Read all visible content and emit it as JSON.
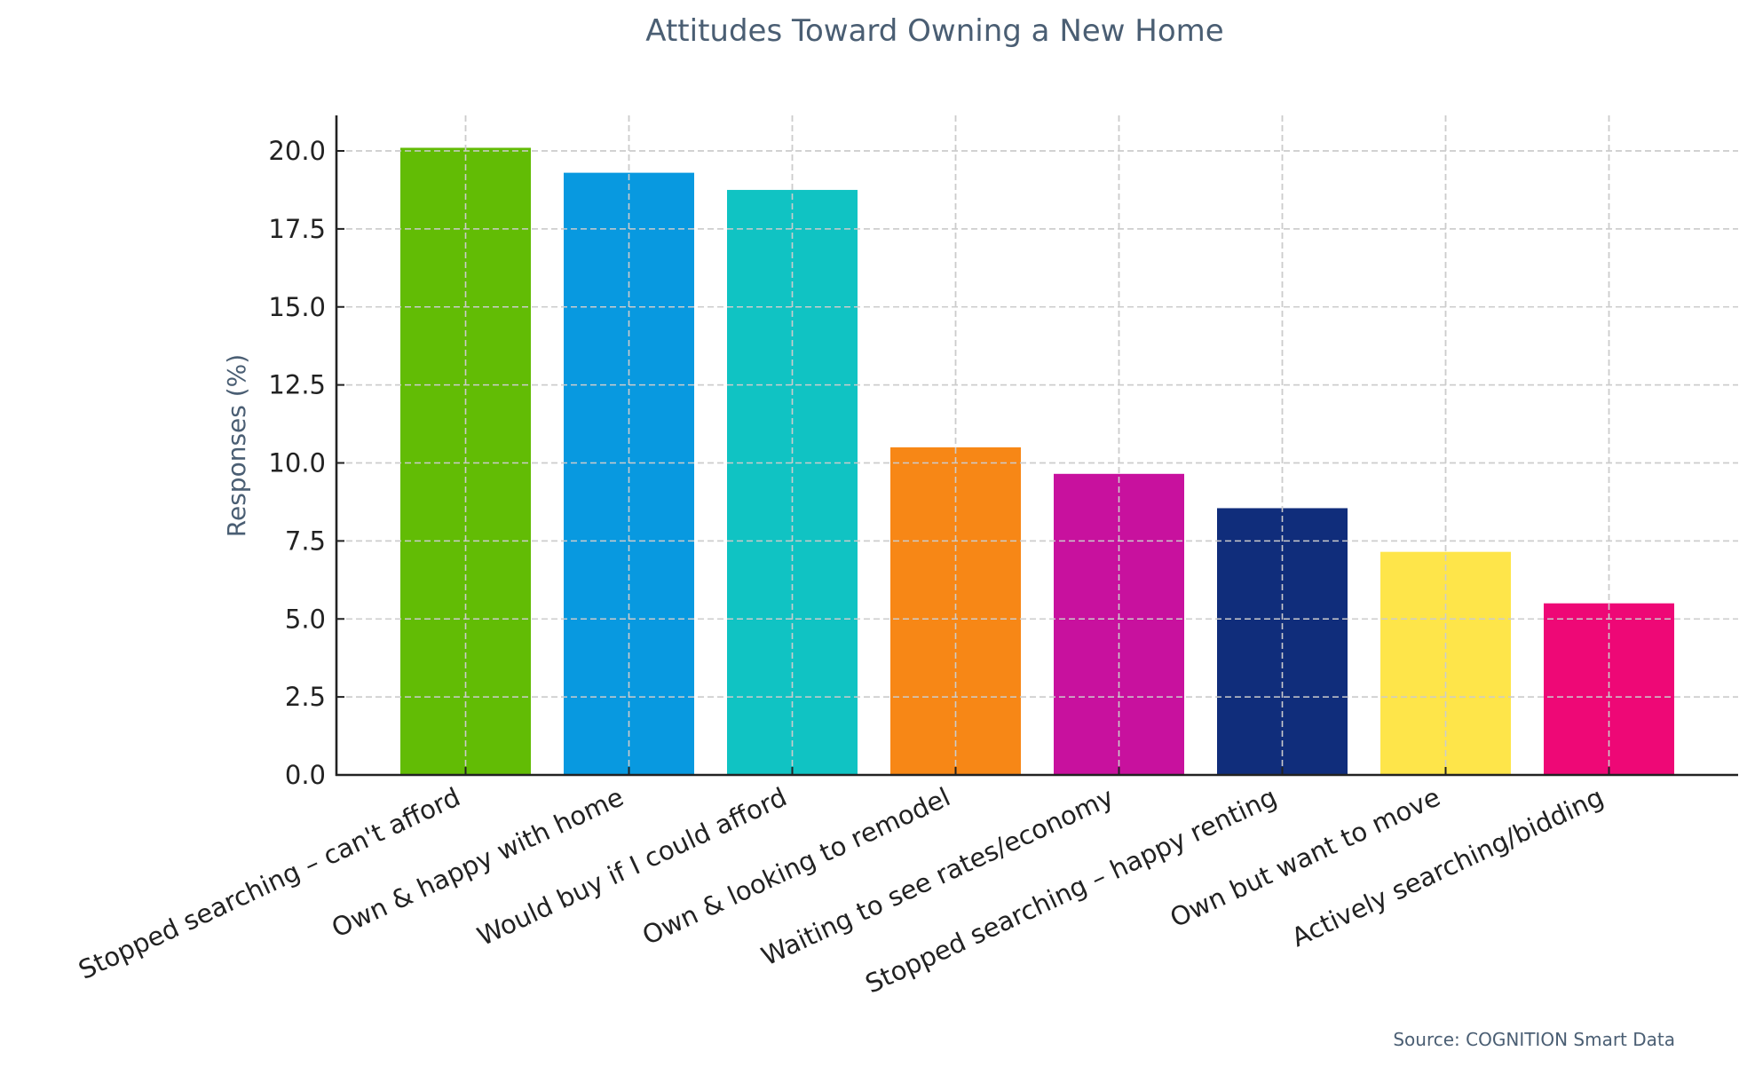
{
  "chart_data": {
    "type": "bar",
    "title": "Attitudes Toward Owning a New Home",
    "xlabel": "",
    "ylabel": "Responses (%)",
    "ylim": [
      0,
      21.2
    ],
    "yticks": [
      0.0,
      2.5,
      5.0,
      7.5,
      10.0,
      12.5,
      15.0,
      17.5,
      20.0
    ],
    "ytick_labels": [
      "0.0",
      "2.5",
      "5.0",
      "7.5",
      "10.0",
      "12.5",
      "15.0",
      "17.5",
      "20.0"
    ],
    "grid": true,
    "grid_style": "dashed",
    "legend": null,
    "categories": [
      "Stopped searching – can't afford",
      "Own & happy with home",
      "Would buy if I could afford",
      "Own & looking to remodel",
      "Waiting to see rates/economy",
      "Stopped searching – happy renting",
      "Own but want to move",
      "Actively searching/bidding"
    ],
    "values": [
      20.1,
      19.3,
      18.75,
      10.5,
      9.65,
      8.55,
      7.15,
      5.5
    ],
    "colors": [
      "#62bc05",
      "#0899e0",
      "#10c3c3",
      "#f78716",
      "#c8119e",
      "#102d7b",
      "#fee54a",
      "#ee0876"
    ],
    "annotation": "Source: COGNITION Smart Data"
  },
  "source_note": "Source: COGNITION Smart Data"
}
